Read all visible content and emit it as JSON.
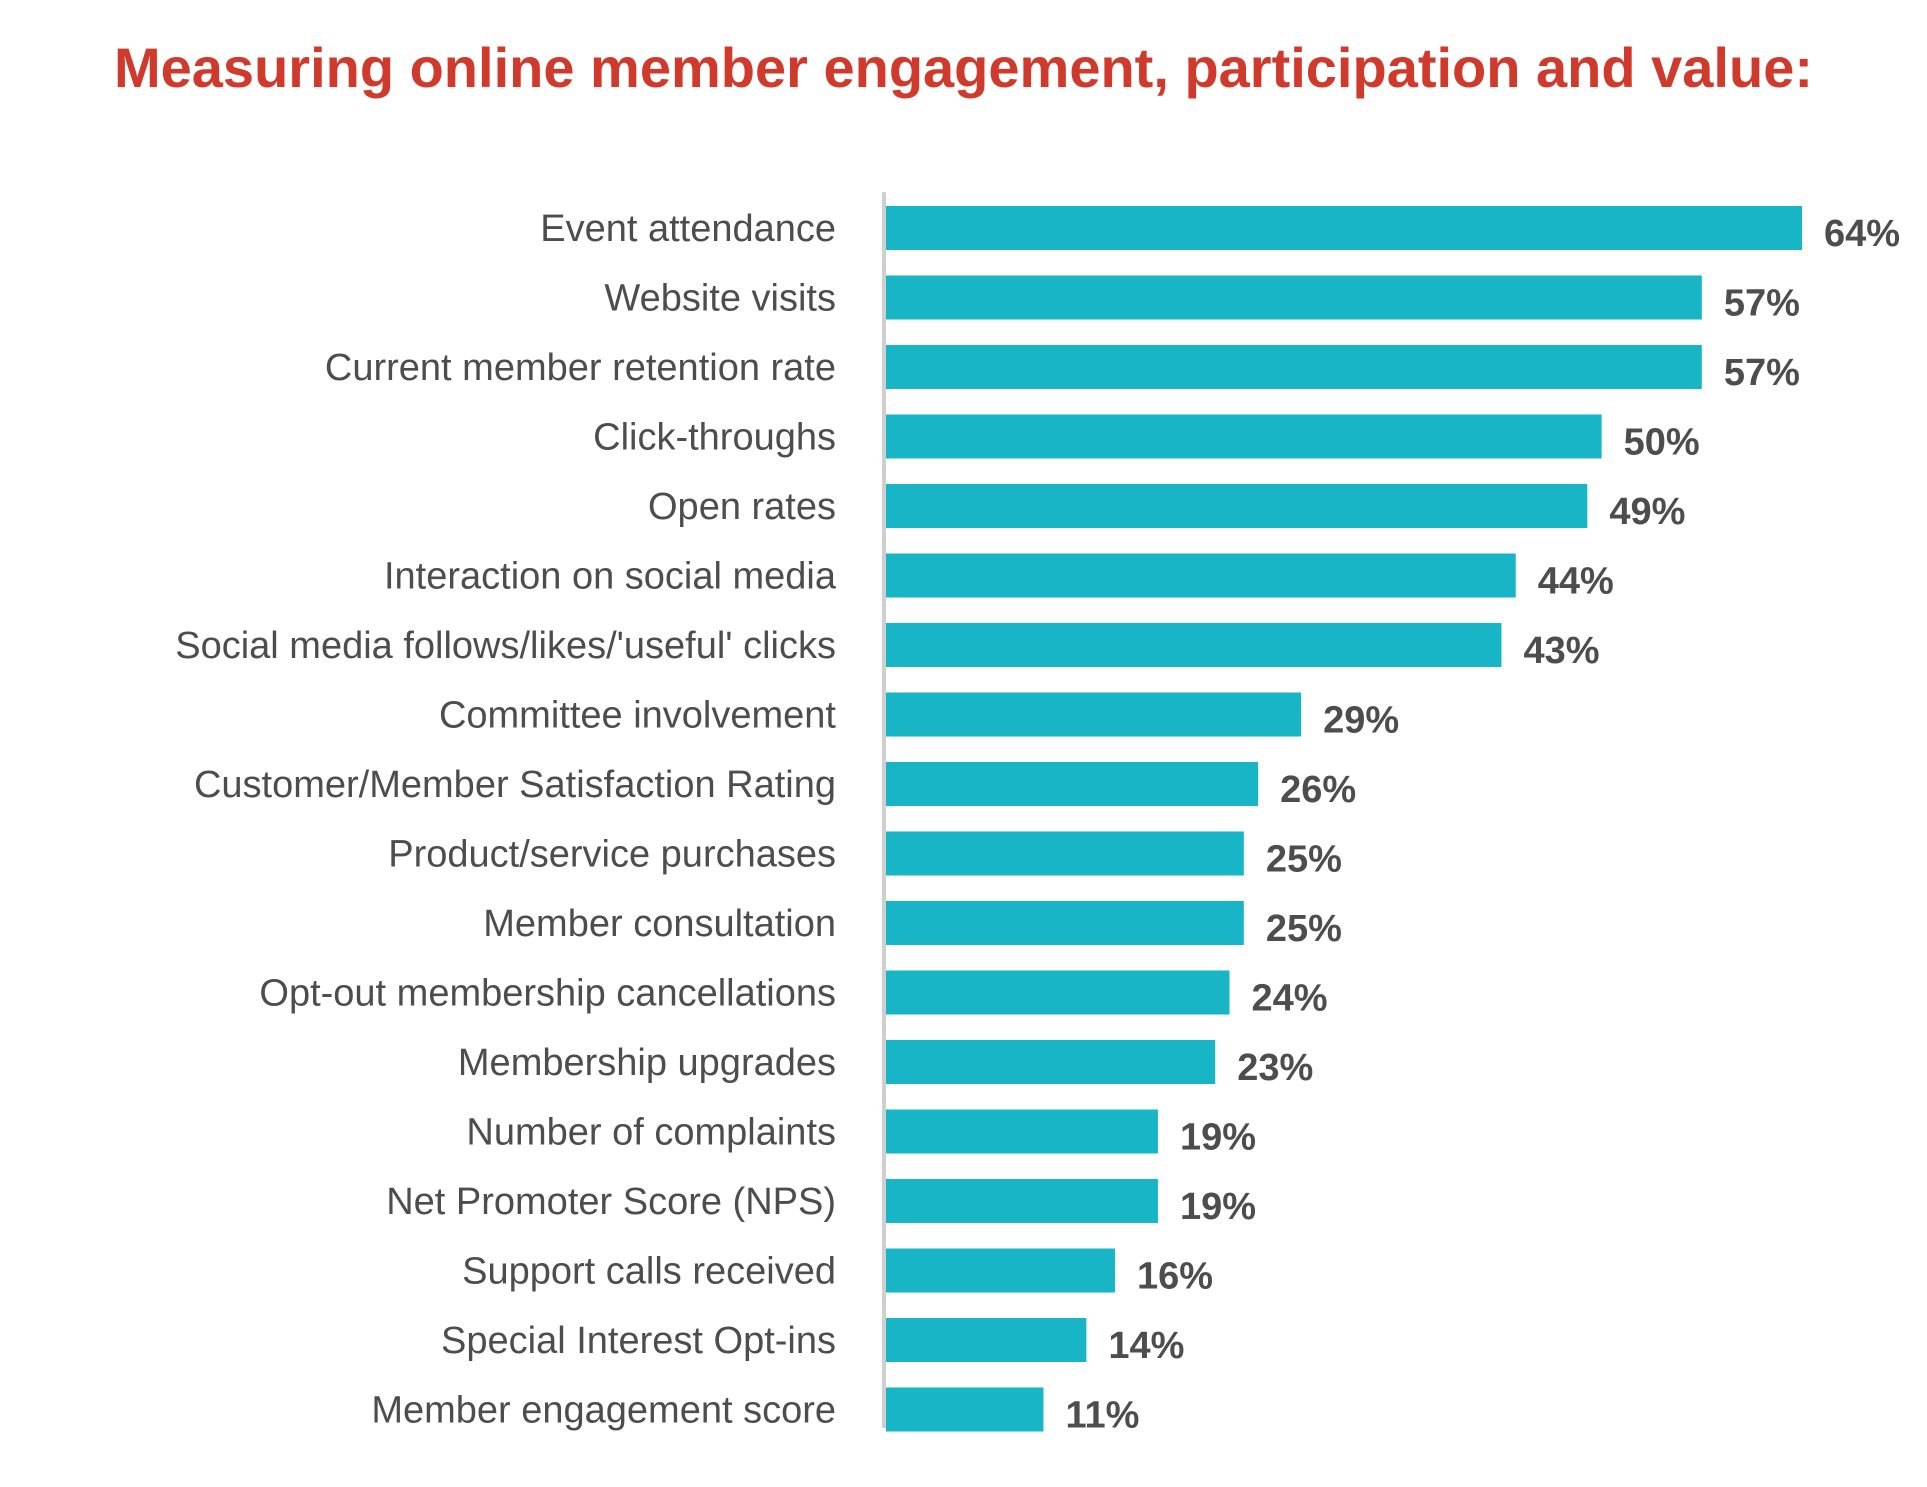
{
  "chart_data": {
    "type": "bar",
    "orientation": "horizontal",
    "title": "Measuring online member engagement, participation and value:",
    "categories": [
      "Event attendance",
      "Website visits",
      "Current member retention rate",
      "Click-throughs",
      "Open rates",
      "Interaction on social media",
      "Social media follows/likes/'useful' clicks",
      "Committee involvement",
      "Customer/Member Satisfaction Rating",
      "Product/service purchases",
      "Member consultation",
      "Opt-out membership cancellations",
      "Membership upgrades",
      "Number of complaints",
      "Net Promoter Score (NPS)",
      "Support calls received",
      "Special Interest Opt-ins",
      "Member engagement score"
    ],
    "values": [
      64,
      57,
      57,
      50,
      49,
      44,
      43,
      29,
      26,
      25,
      25,
      24,
      23,
      19,
      19,
      16,
      14,
      11
    ],
    "value_labels": [
      "64%",
      "57%",
      "57%",
      "50%",
      "49%",
      "44%",
      "43%",
      "29%",
      "26%",
      "25%",
      "25%",
      "24%",
      "23%",
      "19%",
      "19%",
      "16%",
      "14%",
      "11%"
    ],
    "unit": "%",
    "xlim": [
      0,
      64
    ],
    "grid": false,
    "legend": "none",
    "colors": {
      "bar": "#17b5c6",
      "title": "#d03a2c",
      "text": "#4d4d4d",
      "axis": "#cfcfcf"
    }
  }
}
